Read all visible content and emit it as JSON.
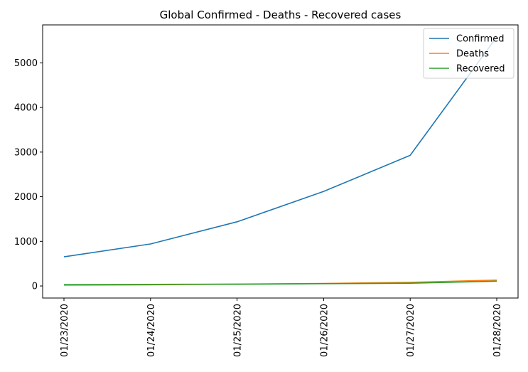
{
  "chart_data": {
    "type": "line",
    "title": "Global Confirmed - Deaths - Recovered cases",
    "xlabel": "",
    "ylabel": "",
    "x": [
      "01/23/2020",
      "01/24/2020",
      "01/25/2020",
      "01/26/2020",
      "01/27/2020",
      "01/28/2020"
    ],
    "ylim": [
      -270,
      5850
    ],
    "yticks": [
      0,
      1000,
      2000,
      3000,
      4000,
      5000
    ],
    "grid": false,
    "legend_position": "top-right",
    "series": [
      {
        "name": "Confirmed",
        "color": "#1f77b4",
        "values": [
          653,
          941,
          1438,
          2118,
          2927,
          5578
        ]
      },
      {
        "name": "Deaths",
        "color": "#ff7f0e",
        "values": [
          18,
          26,
          42,
          56,
          82,
          131
        ]
      },
      {
        "name": "Recovered",
        "color": "#2ca02c",
        "values": [
          30,
          36,
          39,
          52,
          61,
          107
        ]
      }
    ]
  }
}
